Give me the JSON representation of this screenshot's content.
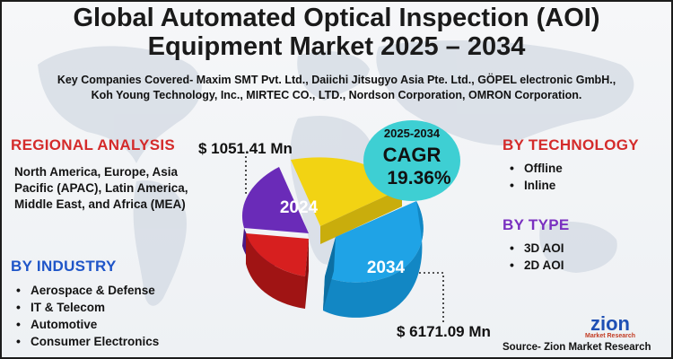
{
  "title_line1": "Global Automated Optical Inspection (AOI)",
  "title_line2": "Equipment Market 2025 – 2034",
  "companies_line1": "Key Companies Covered- Maxim SMT Pvt. Ltd., Daiichi Jitsugyo Asia Pte. Ltd., GÖPEL electronic GmbH.,",
  "companies_line2": "Koh Young Technology, Inc., MIRTEC CO., LTD., Nordson Corporation, OMRON Corporation.",
  "regional": {
    "title": "REGIONAL ANALYSIS",
    "text": "North America, Europe, Asia Pacific (APAC), Latin America, Middle East, and Africa (MEA)"
  },
  "industry": {
    "title": "BY INDUSTRY",
    "items": [
      "Aerospace & Defense",
      "IT & Telecom",
      "Automotive",
      "Consumer Electronics"
    ]
  },
  "technology": {
    "title": "BY  TECHNOLOGY",
    "items": [
      "Offline",
      "Inline"
    ]
  },
  "type": {
    "title": "BY TYPE",
    "items": [
      "3D AOI",
      "2D AOI"
    ]
  },
  "market": {
    "value_2024": "$ 1051.41 Mn",
    "value_2034": "$ 6171.09 Mn",
    "year_2024": "2024",
    "year_2034": "2034"
  },
  "cagr": {
    "period": "2025-2034",
    "label": "CAGR",
    "value": "19.36%"
  },
  "logo": {
    "name": "zion",
    "tagline": "Market Research"
  },
  "source": "Source- Zion Market Research",
  "colors": {
    "red_heading": "#d42b2b",
    "blue_heading": "#1f55c8",
    "purple_heading": "#7a30c0",
    "cagr_bubble": "#3ecfd3",
    "slice_yellow": "#f2d313",
    "slice_purple": "#6a2bb8",
    "slice_red": "#d71f1f",
    "slice_blue": "#1fa3e6"
  }
}
